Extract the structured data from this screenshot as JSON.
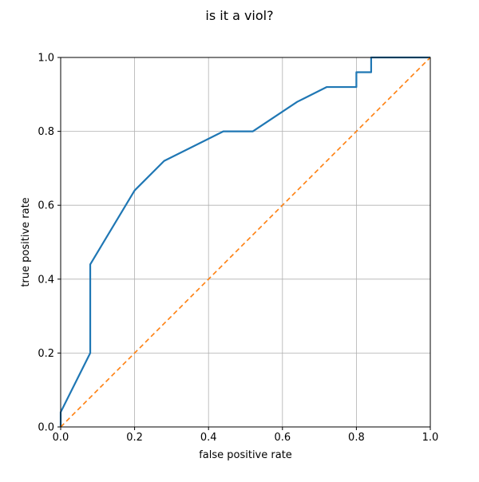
{
  "chart_data": {
    "type": "line",
    "title": "is it a viol?",
    "xlabel": "false positive rate",
    "ylabel": "true positive rate",
    "xlim": [
      0,
      1
    ],
    "ylim": [
      0,
      1
    ],
    "xticks": [
      0.0,
      0.2,
      0.4,
      0.6,
      0.8,
      1.0
    ],
    "yticks": [
      0.0,
      0.2,
      0.4,
      0.6,
      0.8,
      1.0
    ],
    "xtick_labels": [
      "0.0",
      "0.2",
      "0.4",
      "0.6",
      "0.8",
      "1.0"
    ],
    "ytick_labels": [
      "0.0",
      "0.2",
      "0.4",
      "0.6",
      "0.8",
      "1.0"
    ],
    "grid": true,
    "legend": "none",
    "series": [
      {
        "color": "#1f77b4",
        "style": "solid",
        "x": [
          0.0,
          0.0,
          0.0,
          0.08,
          0.08,
          0.2,
          0.28,
          0.44,
          0.52,
          0.64,
          0.72,
          0.8,
          0.8,
          0.84,
          0.84,
          1.0
        ],
        "y": [
          0.0,
          0.04,
          0.04,
          0.2,
          0.44,
          0.64,
          0.72,
          0.8,
          0.8,
          0.88,
          0.92,
          0.92,
          0.96,
          0.96,
          1.0,
          1.0
        ]
      },
      {
        "color": "#ff7f0e",
        "style": "dashed",
        "x": [
          0.0,
          1.0
        ],
        "y": [
          0.0,
          1.0
        ]
      }
    ]
  }
}
